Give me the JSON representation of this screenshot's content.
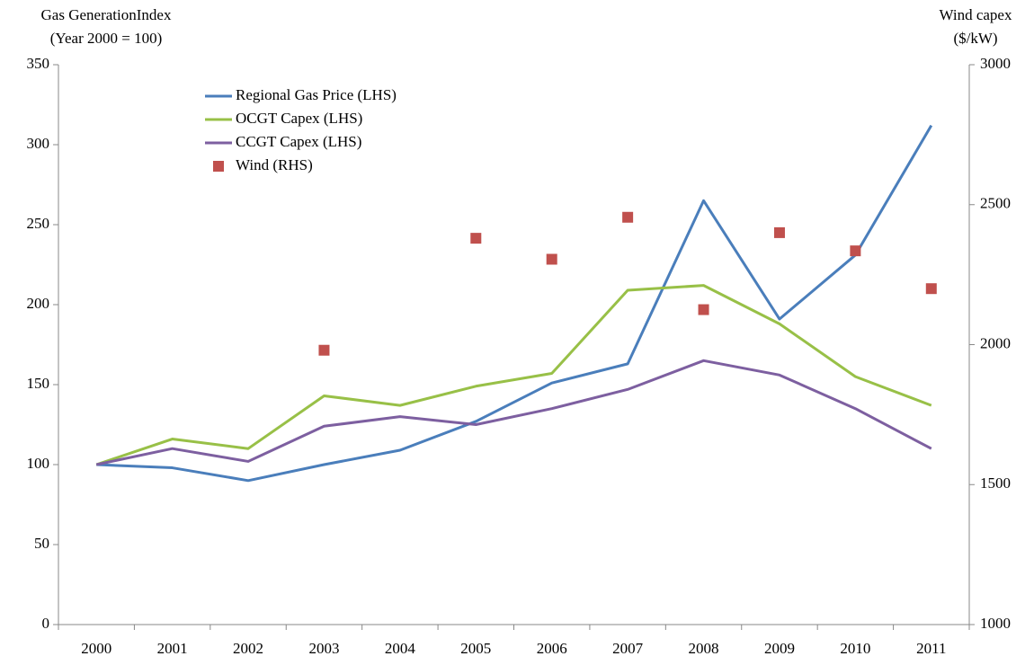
{
  "chart_data": {
    "type": "line",
    "y_label": [
      "Gas GenerationIndex",
      "(Year 2000 = 100)"
    ],
    "y2_label": [
      "Wind capex",
      "($/kW)"
    ],
    "categories": [
      "2000",
      "2001",
      "2002",
      "2003",
      "2004",
      "2005",
      "2006",
      "2007",
      "2008",
      "2009",
      "2010",
      "2011"
    ],
    "series": [
      {
        "name": "Regional Gas Price (LHS)",
        "color": "#4a7ebb",
        "type": "line",
        "values": [
          100,
          98,
          90,
          100,
          109,
          127,
          151,
          163,
          265,
          191,
          231,
          312
        ]
      },
      {
        "name": "OCGT Capex (LHS)",
        "color": "#98c047",
        "type": "line",
        "values": [
          100,
          116,
          110,
          143,
          137,
          149,
          157,
          209,
          212,
          188,
          155,
          137
        ]
      },
      {
        "name": "CCGT Capex (LHS)",
        "color": "#7d5fa0",
        "type": "line",
        "values": [
          100,
          110,
          102,
          124,
          130,
          125,
          135,
          147,
          165,
          156,
          135,
          110
        ]
      },
      {
        "name": "Wind (RHS)",
        "color": "#c0504d",
        "type": "scatter",
        "axis": "y2",
        "values": [
          null,
          null,
          null,
          1980,
          null,
          2380,
          2305,
          2455,
          2125,
          2400,
          2335,
          2200
        ]
      }
    ],
    "ylim": [
      0,
      350
    ],
    "yticks": [
      0,
      50,
      100,
      150,
      200,
      250,
      300,
      350
    ],
    "y2lim": [
      1000,
      3000
    ],
    "y2ticks": [
      1000,
      1500,
      2000,
      2500,
      3000
    ],
    "legend": "upper left"
  }
}
